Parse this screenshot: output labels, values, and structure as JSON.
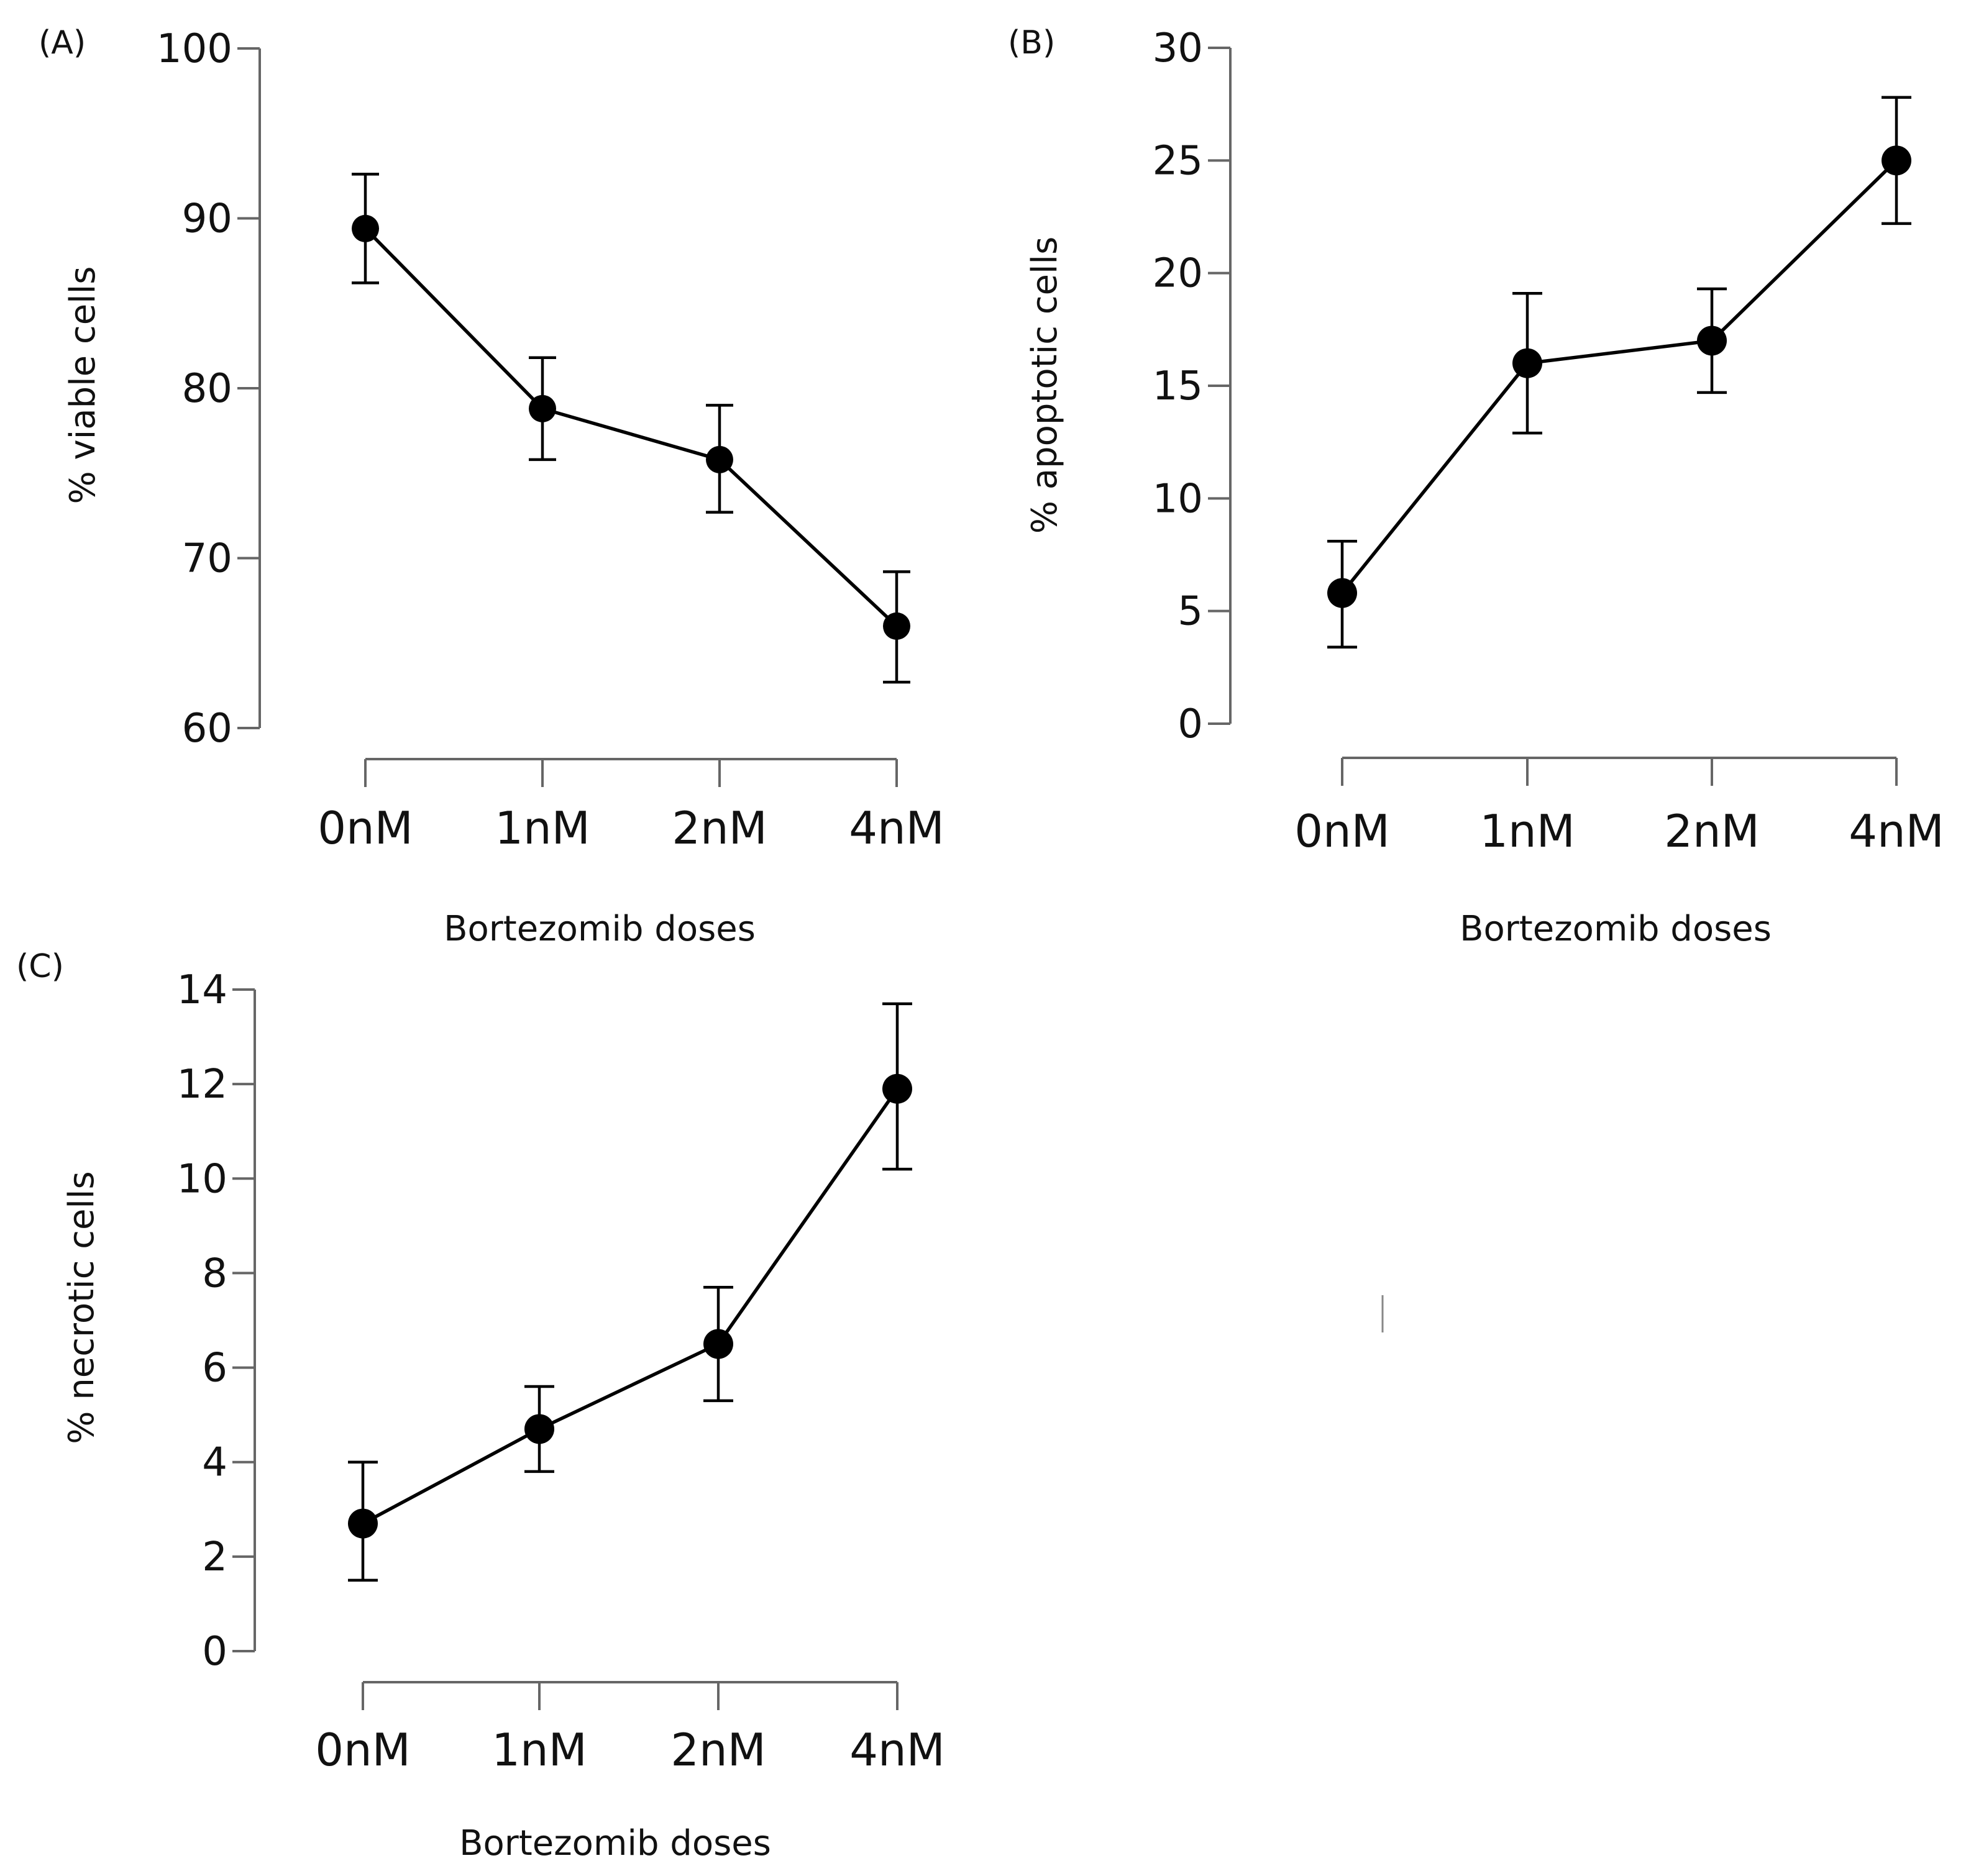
{
  "chart_data": [
    {
      "id": "A",
      "type": "line",
      "panel_label": "(A)",
      "xlabel": "Bortezomib doses",
      "ylabel": "% viable cells",
      "categories": [
        "0nM",
        "1nM",
        "2nM",
        "4nM"
      ],
      "values": [
        89.4,
        78.8,
        75.8,
        66.0
      ],
      "err_low": [
        86.2,
        75.8,
        72.7,
        62.7
      ],
      "err_high": [
        92.6,
        81.8,
        79.0,
        69.2
      ],
      "ylim": [
        60,
        100
      ],
      "yticks": [
        "60",
        "70",
        "80",
        "90",
        "100"
      ],
      "ytick_values": [
        60,
        70,
        80,
        90,
        100
      ]
    },
    {
      "id": "B",
      "type": "line",
      "panel_label": "(B)",
      "xlabel": "Bortezomib doses",
      "ylabel": "% apoptotic cells",
      "categories": [
        "0nM",
        "1nM",
        "2nM",
        "4nM"
      ],
      "values": [
        5.8,
        16.0,
        17.0,
        25.0
      ],
      "err_low": [
        3.4,
        12.9,
        14.7,
        22.2
      ],
      "err_high": [
        8.1,
        19.1,
        19.3,
        27.8
      ],
      "ylim": [
        0,
        30
      ],
      "yticks": [
        "0",
        "5",
        "10",
        "15",
        "20",
        "25",
        "30"
      ],
      "ytick_values": [
        0,
        5,
        10,
        15,
        20,
        25,
        30
      ]
    },
    {
      "id": "C",
      "type": "line",
      "panel_label": "(C)",
      "xlabel": "Bortezomib doses",
      "ylabel": "% necrotic cells",
      "categories": [
        "0nM",
        "1nM",
        "2nM",
        "4nM"
      ],
      "values": [
        2.7,
        4.7,
        6.5,
        11.9
      ],
      "err_low": [
        1.5,
        3.8,
        5.3,
        10.2
      ],
      "err_high": [
        4.0,
        5.6,
        7.7,
        13.7
      ],
      "ylim": [
        0,
        14
      ],
      "yticks": [
        "0",
        "2",
        "4",
        "6",
        "8",
        "10",
        "12",
        "14"
      ],
      "ytick_values": [
        0,
        2,
        4,
        6,
        8,
        10,
        12,
        14
      ]
    }
  ]
}
